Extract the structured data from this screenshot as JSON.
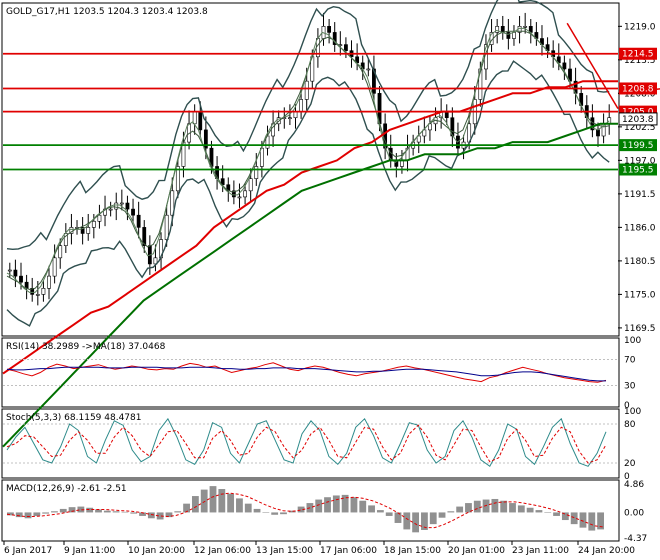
{
  "header": {
    "main_title": "GOLD_G17,H1  1203.5 1204.3 1203.4 1203.8",
    "rsi_title": "RSI(14) 38.2989  ->MA(18) 37.0468",
    "stoch_title": "Stoch(5,3,3) 68.1159 48.4781",
    "macd_title": "MACD(12,26,9) -2.61 -2.51"
  },
  "colors": {
    "background": "#ffffff",
    "border": "#000000",
    "candles": "#000000",
    "bollinger": "#2f4f4f",
    "sma_fast": "#3c5a3c",
    "ma_red": "#e00000",
    "ma_green": "#007000",
    "level_red": "#e00000",
    "level_green": "#008000",
    "rsi_line": "#e00000",
    "rsi_ma": "#00008b",
    "stoch_main": "#2e8b8b",
    "stoch_signal": "#e00000",
    "macd_hist": "#909090",
    "macd_signal": "#e00000"
  },
  "price_axis": {
    "ticks": [
      "1219.0",
      "1213.5",
      "1208.0",
      "1202.5",
      "1197.0",
      "1191.5",
      "1186.0",
      "1180.5",
      "1175.0",
      "1169.5"
    ],
    "range": [
      1168.5,
      1222.5
    ]
  },
  "levels": [
    {
      "label": "1214.5",
      "value": 1214.5,
      "kind": "red"
    },
    {
      "label": "1208.8",
      "value": 1208.8,
      "kind": "red"
    },
    {
      "label": "1205.0",
      "value": 1205.0,
      "kind": "red"
    },
    {
      "label": "1199.5",
      "value": 1199.5,
      "kind": "green"
    },
    {
      "label": "1195.5",
      "value": 1195.5,
      "kind": "green"
    }
  ],
  "current_price": {
    "label": "1203.8",
    "value": 1203.8
  },
  "trendline": {
    "from": {
      "x_index": 100,
      "price": 1219.5
    },
    "to": {
      "x_index": 205,
      "price": 1205.5
    }
  },
  "trendline2": {
    "from": {
      "x_index": 155,
      "price": 1212.5
    },
    "to": {
      "x_index": 205,
      "price": 1208.0
    }
  },
  "rsi_axis": {
    "ticks": [
      "100",
      "70",
      "30",
      "0"
    ]
  },
  "stoch_axis": {
    "ticks": [
      "100",
      "80",
      "20",
      "0"
    ]
  },
  "macd_axis": {
    "ticks": [
      "4.86",
      "0.00",
      "-4.37"
    ]
  },
  "time_axis": {
    "labels": [
      "6 Jan 2017",
      "9 Jan 11:00",
      "10 Jan 20:00",
      "12 Jan 06:00",
      "13 Jan 15:00",
      "17 Jan 06:00",
      "18 Jan 15:00",
      "20 Jan 01:00",
      "23 Jan 11:00",
      "24 Jan 20:00"
    ]
  },
  "chart_data": [
    {
      "type": "candlestick",
      "title": "GOLD_G17,H1",
      "ohlc_last": {
        "open": 1203.5,
        "high": 1204.3,
        "low": 1203.4,
        "close": 1203.8
      },
      "close_series": [
        1179,
        1178,
        1177,
        1176,
        1175,
        1175,
        1176,
        1178,
        1181,
        1183,
        1185,
        1186,
        1186,
        1185,
        1186,
        1187,
        1188,
        1189,
        1189,
        1190,
        1190,
        1189,
        1188,
        1186,
        1183,
        1180,
        1181,
        1184,
        1188,
        1192,
        1196,
        1200,
        1203,
        1205,
        1202,
        1199,
        1196,
        1194,
        1193,
        1192,
        1191,
        1191,
        1192,
        1194,
        1196,
        1199,
        1201,
        1203,
        1204,
        1204,
        1204,
        1205,
        1207,
        1210,
        1214,
        1217,
        1219,
        1218,
        1216,
        1216,
        1215,
        1214,
        1213,
        1212,
        1212,
        1208,
        1203,
        1199,
        1197,
        1196,
        1197,
        1199,
        1200,
        1201,
        1202,
        1203,
        1204,
        1205,
        1204,
        1201,
        1199,
        1200,
        1203,
        1207,
        1212,
        1216,
        1218,
        1219,
        1218,
        1217,
        1218,
        1219,
        1219,
        1218,
        1217,
        1216,
        1215,
        1214,
        1213,
        1212,
        1210,
        1208,
        1206,
        1204,
        1202,
        1201,
        1203,
        1204
      ],
      "ma_red_series": [
        1162,
        1164,
        1166,
        1168,
        1170,
        1172,
        1173,
        1175,
        1177,
        1179,
        1181,
        1183,
        1186,
        1188,
        1190,
        1192,
        1193,
        1195,
        1196,
        1197,
        1199,
        1200,
        1202,
        1203,
        1204,
        1205,
        1205,
        1206,
        1207,
        1208,
        1208,
        1209,
        1209,
        1210,
        1210,
        1210
      ],
      "ma_green_series": [
        1150,
        1153,
        1156,
        1159,
        1162,
        1165,
        1168,
        1171,
        1174,
        1176,
        1178,
        1180,
        1182,
        1184,
        1186,
        1188,
        1190,
        1192,
        1193,
        1194,
        1195,
        1196,
        1197,
        1197,
        1198,
        1198,
        1198,
        1199,
        1199,
        1200,
        1200,
        1200,
        1201,
        1202,
        1203,
        1203
      ],
      "levels": [
        1214.5,
        1208.8,
        1205.0,
        1199.5,
        1195.5
      ]
    },
    {
      "type": "line",
      "title": "RSI(14)",
      "ylim": [
        0,
        100
      ],
      "series": [
        {
          "name": "RSI(14)",
          "values": [
            55,
            52,
            48,
            45,
            50,
            58,
            63,
            60,
            56,
            58,
            60,
            62,
            58,
            55,
            57,
            60,
            58,
            55,
            54,
            56,
            55,
            60,
            64,
            62,
            58,
            60,
            55,
            50,
            53,
            56,
            58,
            62,
            65,
            60,
            55,
            53,
            57,
            60,
            58,
            54,
            50,
            47,
            45,
            48,
            50,
            52,
            55,
            58,
            60,
            57,
            55,
            52,
            49,
            46,
            43,
            40,
            38,
            36,
            42,
            45,
            50,
            54,
            58,
            55,
            52,
            48,
            45,
            42,
            40,
            38,
            36,
            35,
            38
          ]
        },
        {
          "name": "MA(18)",
          "values": [
            55,
            54,
            54,
            55,
            56,
            56,
            57,
            58,
            58,
            58,
            58,
            58,
            57,
            57,
            57,
            58,
            58,
            58,
            58,
            57,
            57,
            57,
            58,
            58,
            58,
            57,
            56,
            56,
            55,
            55,
            56,
            56,
            57,
            57,
            57,
            56,
            56,
            56,
            55,
            54,
            53,
            52,
            51,
            51,
            52,
            52,
            53,
            54,
            55,
            55,
            55,
            54,
            53,
            52,
            51,
            49,
            47,
            45,
            45,
            46,
            48,
            50,
            51,
            51,
            50,
            48,
            46,
            44,
            42,
            40,
            38,
            37,
            37
          ]
        }
      ]
    },
    {
      "type": "line",
      "title": "Stoch(5,3,3)",
      "ylim": [
        0,
        100
      ],
      "series": [
        {
          "name": "Main",
          "values": [
            40,
            60,
            75,
            50,
            25,
            20,
            45,
            80,
            70,
            30,
            20,
            55,
            85,
            78,
            40,
            22,
            30,
            70,
            88,
            60,
            25,
            18,
            40,
            82,
            75,
            35,
            20,
            50,
            80,
            85,
            55,
            25,
            20,
            65,
            85,
            70,
            30,
            18,
            35,
            75,
            88,
            62,
            28,
            20,
            50,
            82,
            78,
            40,
            20,
            30,
            70,
            85,
            60,
            25,
            15,
            40,
            80,
            72,
            30,
            18,
            45,
            75,
            88,
            50,
            20,
            15,
            35,
            68
          ]
        },
        {
          "name": "Signal",
          "values": [
            45,
            50,
            62,
            60,
            45,
            30,
            32,
            55,
            68,
            55,
            35,
            35,
            60,
            75,
            62,
            40,
            30,
            48,
            68,
            70,
            50,
            28,
            28,
            58,
            70,
            55,
            32,
            35,
            60,
            75,
            68,
            45,
            28,
            40,
            65,
            75,
            55,
            30,
            28,
            52,
            75,
            72,
            45,
            25,
            35,
            65,
            78,
            60,
            32,
            25,
            48,
            72,
            70,
            45,
            22,
            28,
            58,
            72,
            55,
            30,
            32,
            58,
            75,
            68,
            38,
            20,
            25,
            48
          ]
        }
      ]
    },
    {
      "type": "bar",
      "title": "MACD(12,26,9)",
      "ylim": [
        -4.37,
        4.86
      ],
      "series": [
        {
          "name": "MACD",
          "values": [
            -0.5,
            -0.8,
            -1.0,
            -0.6,
            -0.2,
            0.2,
            0.6,
            0.9,
            1.0,
            0.8,
            0.5,
            0.3,
            0.2,
            0.1,
            -0.2,
            -0.6,
            -1.0,
            -1.2,
            -0.8,
            0.2,
            1.5,
            2.8,
            3.9,
            4.5,
            4.0,
            3.2,
            2.4,
            1.5,
            0.6,
            0.0,
            -0.4,
            -0.3,
            0.3,
            1.0,
            1.6,
            2.2,
            2.6,
            2.9,
            3.0,
            2.6,
            2.0,
            1.2,
            0.4,
            -0.6,
            -1.8,
            -2.9,
            -3.4,
            -3.0,
            -2.0,
            -0.9,
            0.2,
            1.0,
            1.6,
            2.0,
            2.2,
            2.3,
            2.0,
            1.6,
            1.2,
            0.8,
            0.4,
            0.0,
            -0.6,
            -1.3,
            -2.0,
            -2.6,
            -3.1,
            -2.9
          ]
        },
        {
          "name": "Signal",
          "values": [
            -0.3,
            -0.5,
            -0.7,
            -0.7,
            -0.6,
            -0.4,
            -0.2,
            0.1,
            0.4,
            0.5,
            0.5,
            0.5,
            0.4,
            0.3,
            0.2,
            0.0,
            -0.3,
            -0.6,
            -0.7,
            -0.5,
            0.0,
            0.8,
            1.7,
            2.6,
            3.1,
            3.3,
            3.1,
            2.7,
            2.0,
            1.3,
            0.7,
            0.3,
            0.2,
            0.4,
            0.8,
            1.3,
            1.8,
            2.2,
            2.5,
            2.6,
            2.4,
            2.0,
            1.4,
            0.7,
            -0.2,
            -1.2,
            -2.1,
            -2.6,
            -2.6,
            -2.1,
            -1.4,
            -0.6,
            0.2,
            0.8,
            1.3,
            1.7,
            1.8,
            1.8,
            1.6,
            1.3,
            1.0,
            0.6,
            0.1,
            -0.5,
            -1.1,
            -1.7,
            -2.3,
            -2.5
          ]
        }
      ]
    }
  ]
}
